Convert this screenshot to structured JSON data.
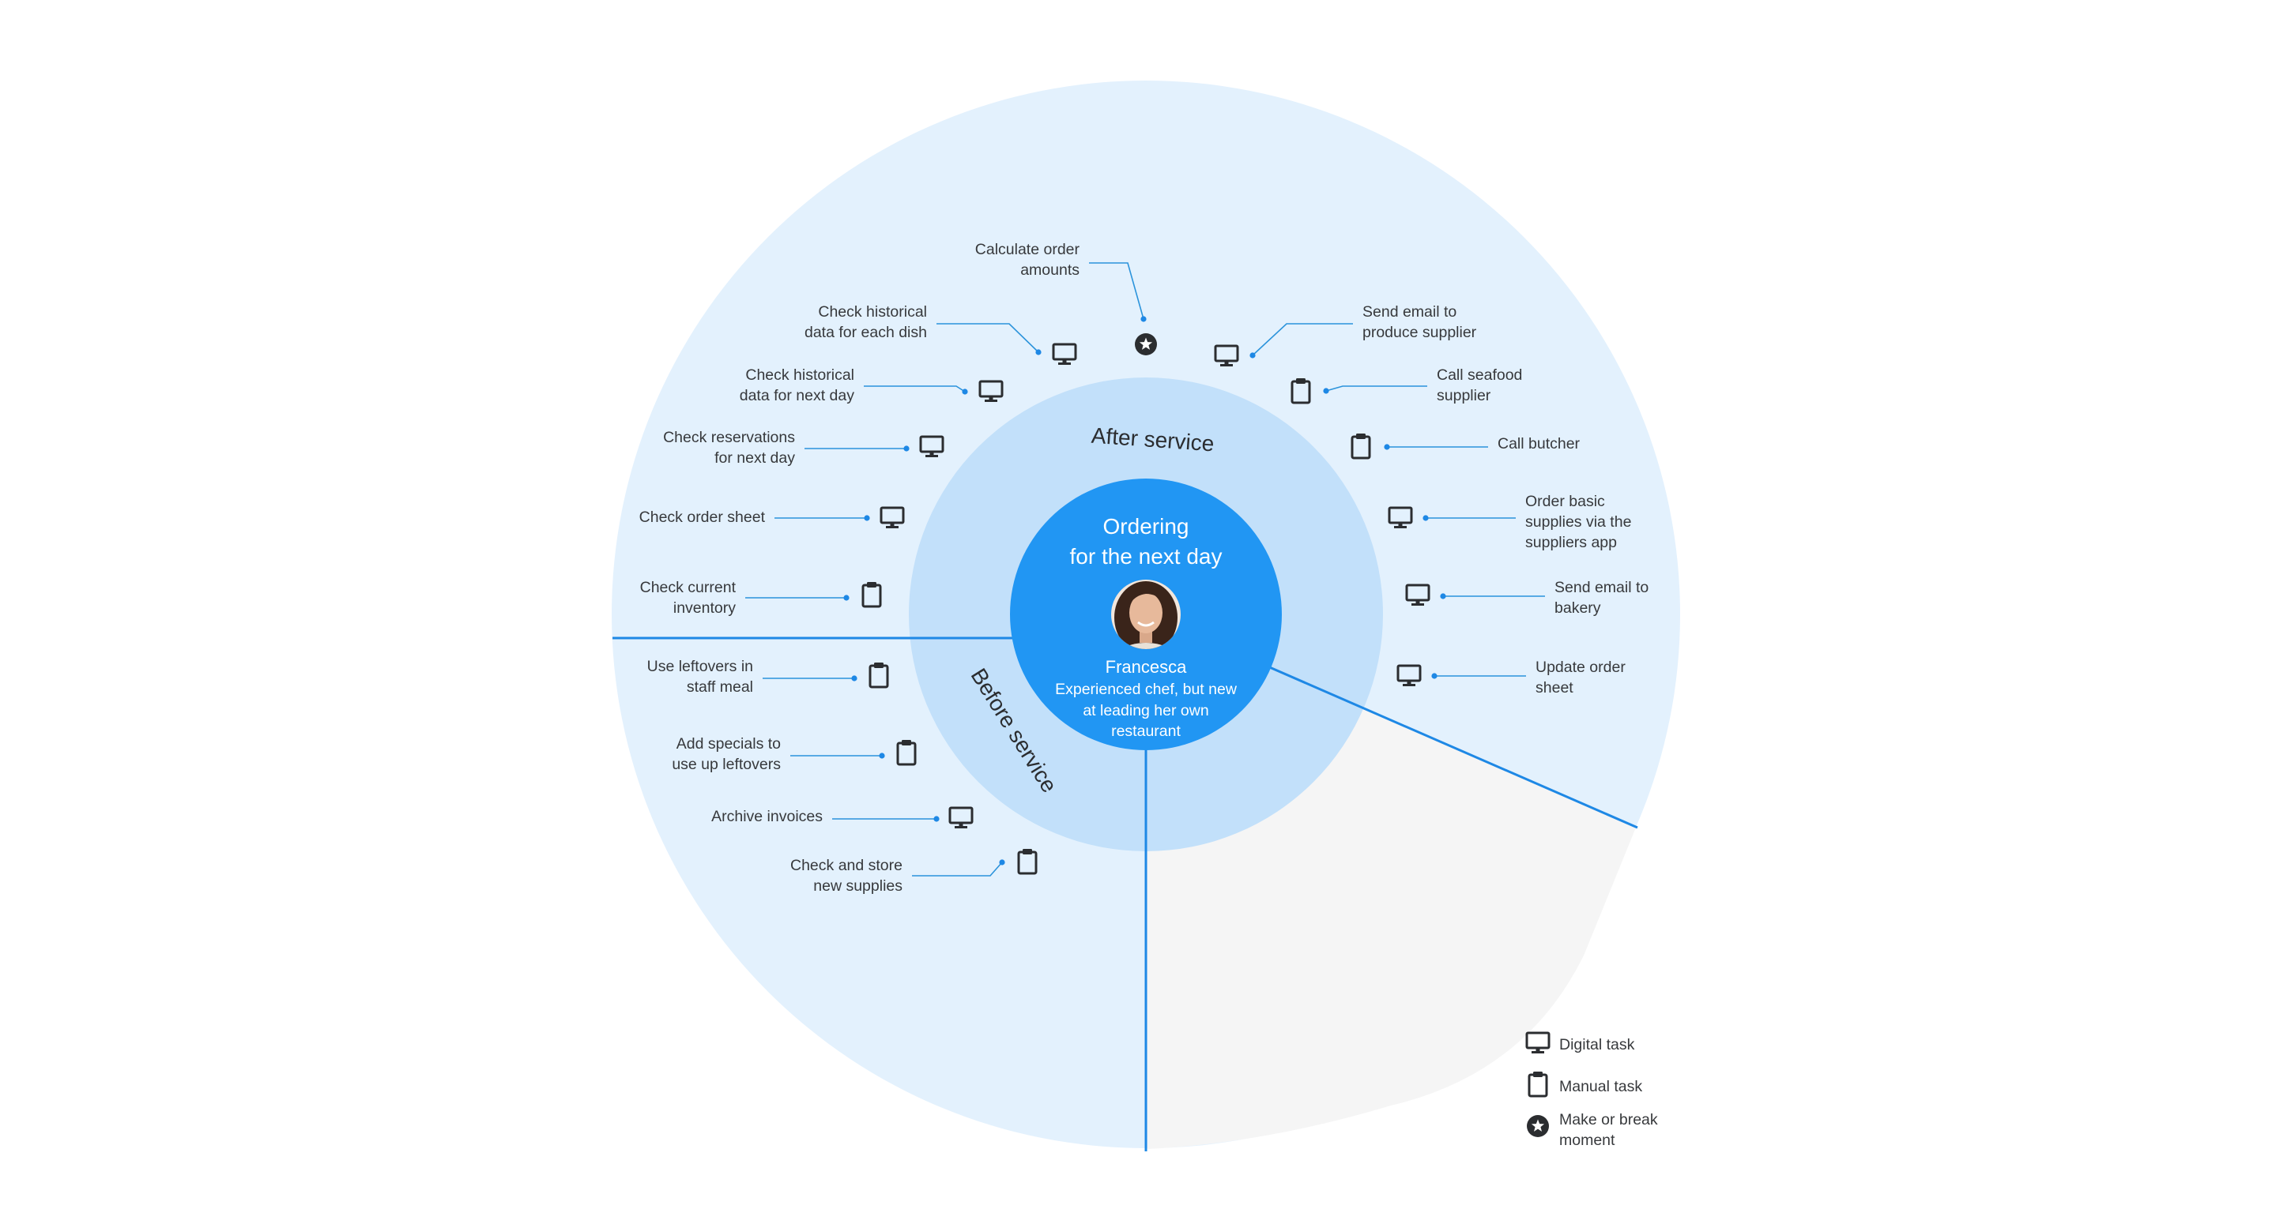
{
  "center": {
    "title_lines": [
      "Ordering",
      "for the next day"
    ],
    "persona_name": "Francesca",
    "persona_desc_lines": [
      "Experienced chef, but new",
      "at leading her own",
      "restaurant"
    ]
  },
  "phases": {
    "after": "After service",
    "before": "Before service"
  },
  "tasks": [
    {
      "lines": [
        "Calculate order",
        "amounts"
      ],
      "icon": "star-icon",
      "type": "make-or-break"
    },
    {
      "lines": [
        "Check historical",
        "data for each dish"
      ],
      "icon": "monitor-icon",
      "type": "digital"
    },
    {
      "lines": [
        "Check historical",
        "data for next day"
      ],
      "icon": "monitor-icon",
      "type": "digital"
    },
    {
      "lines": [
        "Check reservations",
        "for next day"
      ],
      "icon": "monitor-icon",
      "type": "digital"
    },
    {
      "lines": [
        "Check order sheet"
      ],
      "icon": "monitor-icon",
      "type": "digital"
    },
    {
      "lines": [
        "Check current",
        "inventory"
      ],
      "icon": "clipboard-icon",
      "type": "manual"
    },
    {
      "lines": [
        "Send email to",
        "produce supplier"
      ],
      "icon": "monitor-icon",
      "type": "digital"
    },
    {
      "lines": [
        "Call seafood",
        "supplier"
      ],
      "icon": "clipboard-icon",
      "type": "manual"
    },
    {
      "lines": [
        "Call butcher"
      ],
      "icon": "clipboard-icon",
      "type": "manual"
    },
    {
      "lines": [
        "Order basic",
        "supplies via the",
        "suppliers app"
      ],
      "icon": "monitor-icon",
      "type": "digital"
    },
    {
      "lines": [
        "Send email to",
        "bakery"
      ],
      "icon": "monitor-icon",
      "type": "digital"
    },
    {
      "lines": [
        "Update order",
        "sheet"
      ],
      "icon": "monitor-icon",
      "type": "digital"
    },
    {
      "lines": [
        "Use leftovers in",
        "staff meal"
      ],
      "icon": "clipboard-icon",
      "type": "manual"
    },
    {
      "lines": [
        "Add specials to",
        "use up leftovers"
      ],
      "icon": "clipboard-icon",
      "type": "manual"
    },
    {
      "lines": [
        "Archive invoices"
      ],
      "icon": "monitor-icon",
      "type": "digital"
    },
    {
      "lines": [
        "Check and store",
        "new supplies"
      ],
      "icon": "clipboard-icon",
      "type": "manual"
    }
  ],
  "legend": [
    {
      "lines": [
        "Digital task"
      ],
      "icon": "monitor-icon"
    },
    {
      "lines": [
        "Manual task"
      ],
      "icon": "clipboard-icon"
    },
    {
      "lines": [
        "Make or break",
        "moment"
      ],
      "icon": "star-icon"
    }
  ],
  "colors": {
    "outer_ring": "#e3f1fd",
    "middle_ring": "#c2e0fa",
    "center": "#2196f3",
    "empty_sector": "#f5f5f5",
    "line": "#1e88e5"
  }
}
